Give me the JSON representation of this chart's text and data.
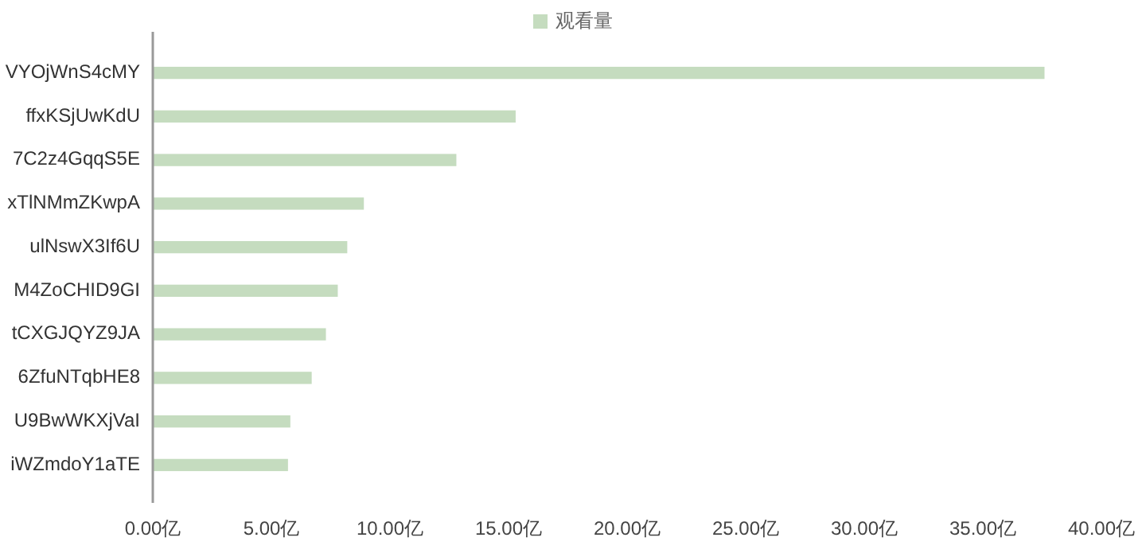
{
  "chart_data": {
    "type": "bar",
    "orientation": "horizontal",
    "categories": [
      "VYOjWnS4cMY",
      "ffxKSjUwKdU",
      "7C2z4GqqS5E",
      "xTlNMmZKwpA",
      "ulNswX3If6U",
      "M4ZoCHID9GI",
      "tCXGJQYZ9JA",
      "6ZfuNTqbHE8",
      "U9BwWKXjVaI",
      "iWZmdoY1aTE"
    ],
    "series": [
      {
        "name": "观看量",
        "color": "#c5dcbf",
        "values": [
          37.6,
          15.3,
          12.8,
          8.9,
          8.2,
          7.8,
          7.3,
          6.7,
          5.8,
          5.7
        ]
      }
    ],
    "xlim": [
      0,
      40
    ],
    "xticks": [
      {
        "value": 0,
        "label": "0.00亿"
      },
      {
        "value": 5,
        "label": "5.00亿"
      },
      {
        "value": 10,
        "label": "10.00亿"
      },
      {
        "value": 15,
        "label": "15.00亿"
      },
      {
        "value": 20,
        "label": "20.00亿"
      },
      {
        "value": 25,
        "label": "25.00亿"
      },
      {
        "value": 30,
        "label": "30.00亿"
      },
      {
        "value": 35,
        "label": "35.00亿"
      },
      {
        "value": 40,
        "label": "40.00亿"
      }
    ],
    "legend": "top",
    "grid": false
  }
}
